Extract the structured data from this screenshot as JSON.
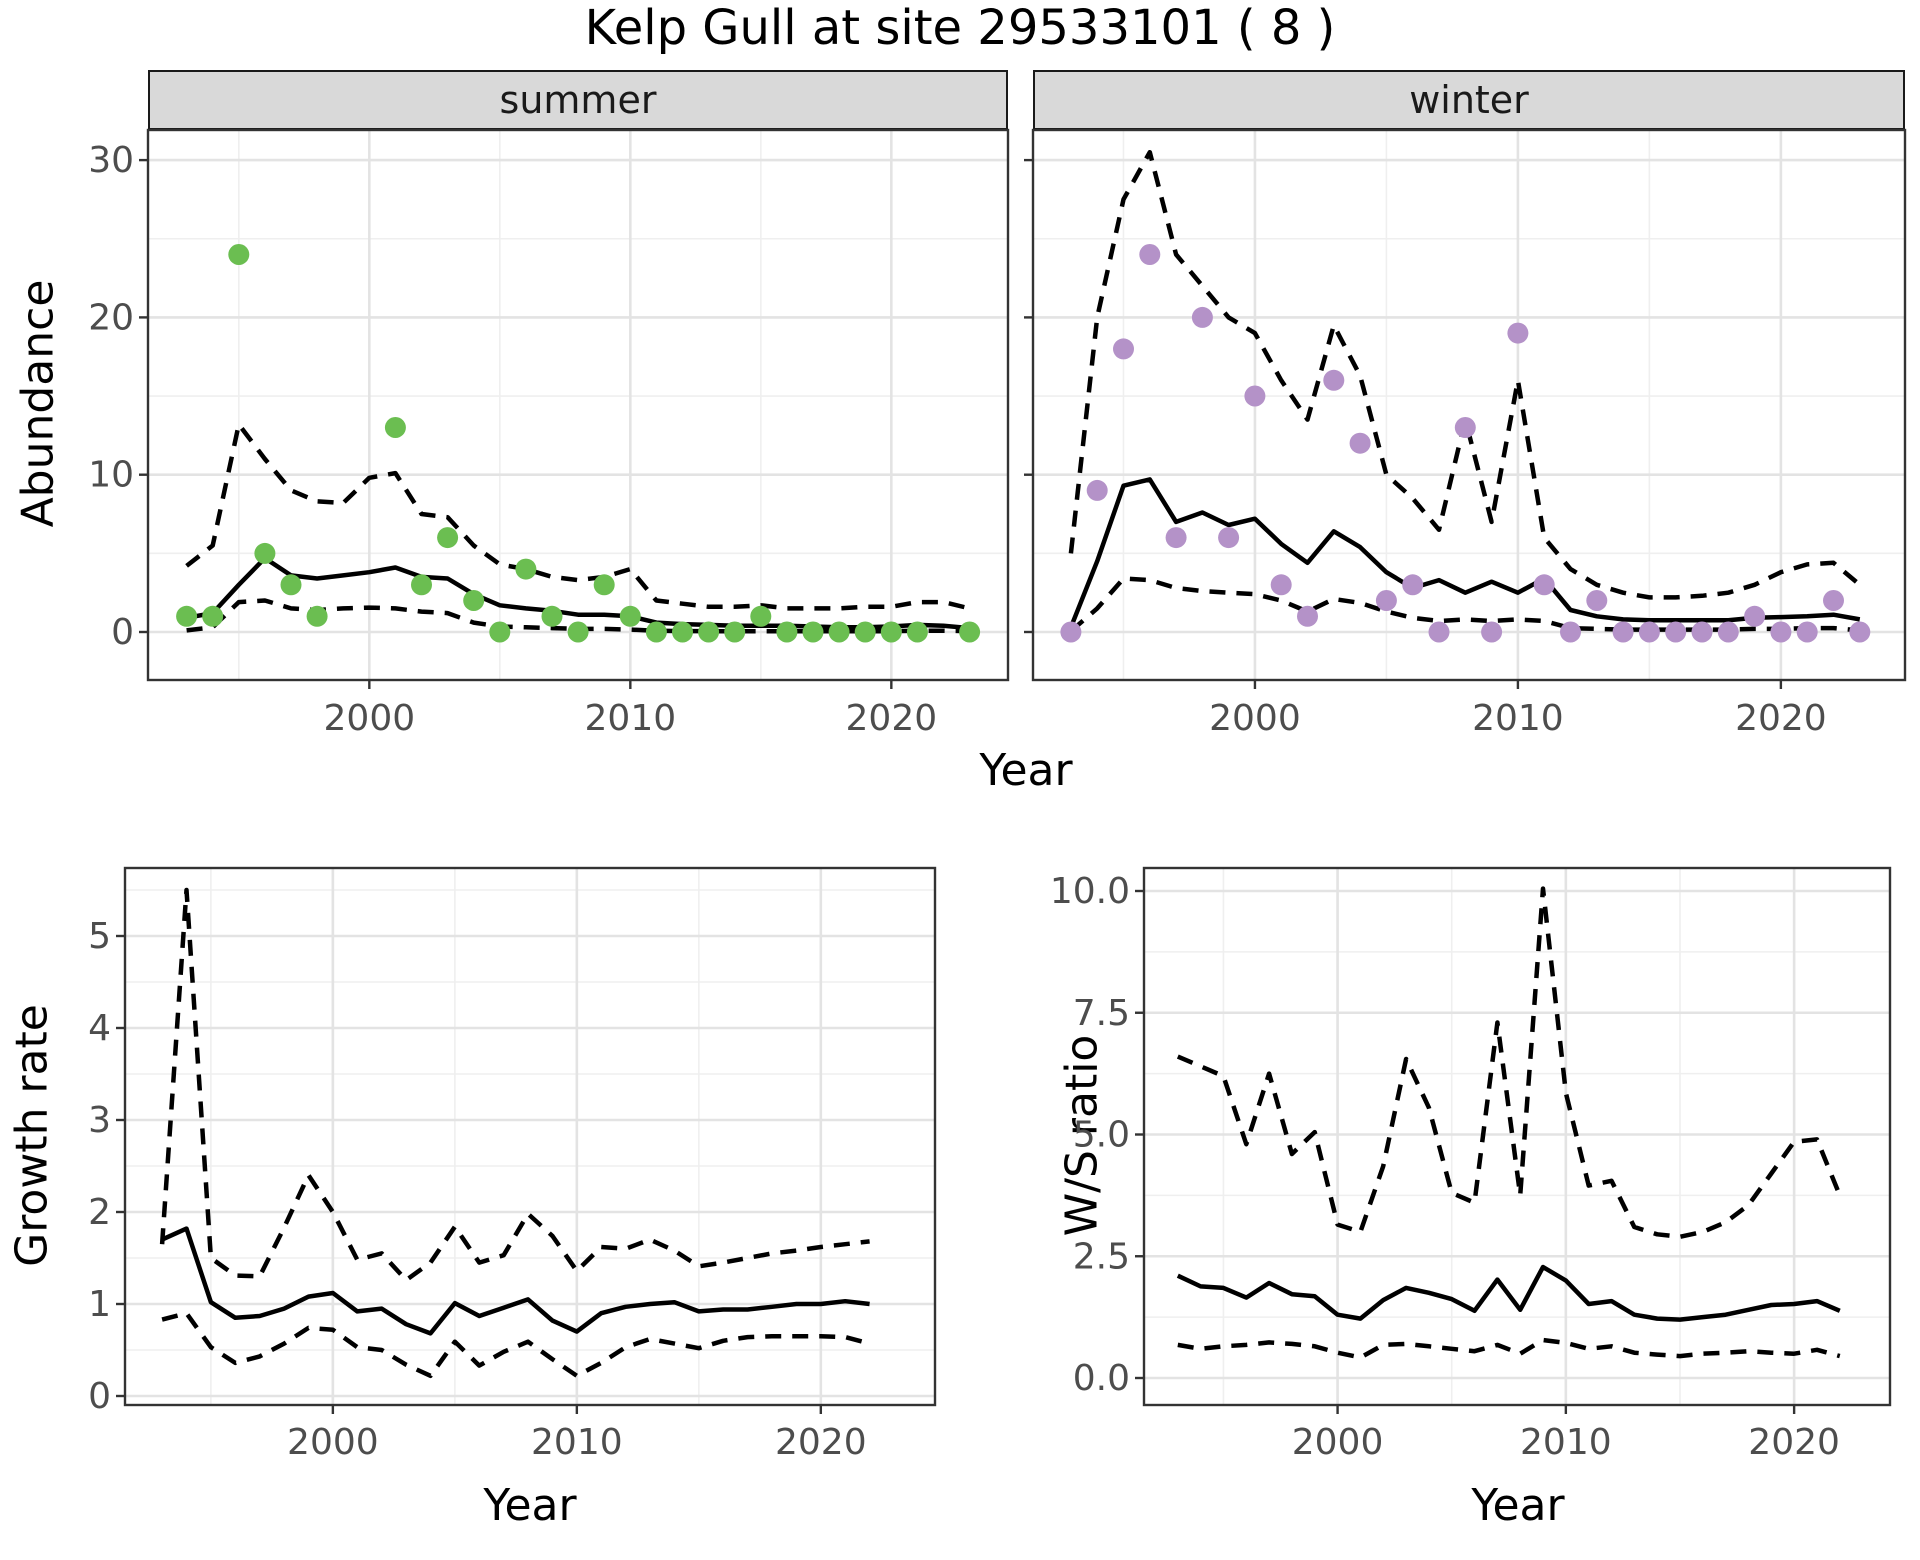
{
  "title": "Kelp Gull at site 29533101 ( 8 )",
  "axes": {
    "x_label": "Year",
    "abundance_label": "Abundance",
    "growth_label": "Growth rate",
    "ws_label": "W/S ratio"
  },
  "facets": [
    {
      "label": "summer"
    },
    {
      "label": "winter"
    }
  ],
  "colors": {
    "summer_point": "#6bbe51",
    "winter_point": "#b492c8",
    "line": "#000000",
    "strip_bg": "#d9d9d9",
    "panel_border": "#333333",
    "grid_major": "#e3e3e3",
    "grid_minor": "#efefef",
    "tick_text": "#4d4d4d"
  },
  "chart_data": [
    {
      "id": "abundance_summer",
      "type": "line",
      "facet": "summer",
      "xlabel": "Year",
      "ylabel": "Abundance",
      "years": [
        1993,
        1994,
        1995,
        1996,
        1997,
        1998,
        1999,
        2000,
        2001,
        2002,
        2003,
        2004,
        2005,
        2006,
        2007,
        2008,
        2009,
        2010,
        2011,
        2012,
        2013,
        2014,
        2015,
        2016,
        2017,
        2018,
        2019,
        2020,
        2021,
        2022,
        2023
      ],
      "series": [
        {
          "name": "model_fit",
          "style": "solid",
          "values": [
            0.9,
            1.2,
            3.0,
            4.7,
            3.6,
            3.4,
            3.6,
            3.8,
            4.1,
            3.5,
            3.4,
            2.4,
            1.7,
            1.5,
            1.35,
            1.1,
            1.1,
            1.0,
            0.6,
            0.5,
            0.45,
            0.4,
            0.4,
            0.4,
            0.35,
            0.3,
            0.3,
            0.35,
            0.45,
            0.4,
            0.25
          ]
        },
        {
          "name": "upper_ci",
          "style": "dashed",
          "values": [
            4.2,
            5.5,
            13.2,
            11.0,
            9.0,
            8.3,
            8.2,
            9.8,
            10.1,
            7.5,
            7.3,
            5.5,
            4.3,
            4.0,
            3.5,
            3.3,
            3.5,
            4.0,
            2.0,
            1.8,
            1.6,
            1.6,
            1.7,
            1.5,
            1.5,
            1.5,
            1.6,
            1.6,
            1.9,
            1.9,
            1.5
          ]
        },
        {
          "name": "lower_ci",
          "style": "dashed",
          "values": [
            0.1,
            0.3,
            1.9,
            2.0,
            1.5,
            1.4,
            1.5,
            1.55,
            1.5,
            1.3,
            1.2,
            0.6,
            0.35,
            0.3,
            0.25,
            0.2,
            0.2,
            0.15,
            0.08,
            0.06,
            0.05,
            0.05,
            0.05,
            0.05,
            0.05,
            0.05,
            0.05,
            0.05,
            0.08,
            0.08,
            0.05
          ]
        }
      ],
      "points": {
        "name": "observed_counts",
        "color": "#6bbe51",
        "values": [
          1,
          1,
          24,
          5,
          3,
          1,
          null,
          null,
          13,
          3,
          6,
          2,
          0,
          4,
          1,
          0,
          3,
          1,
          0,
          0,
          0,
          0,
          1,
          0,
          0,
          0,
          0,
          0,
          0,
          null,
          0
        ]
      },
      "ylim": [
        0,
        30.5
      ],
      "yticks": {
        "values": [
          0,
          10,
          20,
          30
        ],
        "labels": [
          "0",
          "10",
          "20",
          "30"
        ]
      },
      "yminor": [
        5,
        15,
        25
      ],
      "xticks": {
        "values": [
          2000,
          2010,
          2020
        ],
        "labels": [
          "2000",
          "2010",
          "2020"
        ]
      },
      "xminor": [
        1995,
        2005,
        2015
      ],
      "grid": true,
      "legend": "none"
    },
    {
      "id": "abundance_winter",
      "type": "line",
      "facet": "winter",
      "xlabel": "Year",
      "ylabel": "Abundance",
      "years": [
        1993,
        1994,
        1995,
        1996,
        1997,
        1998,
        1999,
        2000,
        2001,
        2002,
        2003,
        2004,
        2005,
        2006,
        2007,
        2008,
        2009,
        2010,
        2011,
        2012,
        2013,
        2014,
        2015,
        2016,
        2017,
        2018,
        2019,
        2020,
        2021,
        2022,
        2023
      ],
      "series": [
        {
          "name": "model_fit",
          "style": "solid",
          "values": [
            0.3,
            4.5,
            9.3,
            9.7,
            7.0,
            7.6,
            6.8,
            7.2,
            5.6,
            4.4,
            6.4,
            5.4,
            3.8,
            2.8,
            3.3,
            2.5,
            3.2,
            2.5,
            3.4,
            1.4,
            1.0,
            0.8,
            0.75,
            0.75,
            0.75,
            0.75,
            0.9,
            0.95,
            1.0,
            1.1,
            0.8
          ]
        },
        {
          "name": "upper_ci",
          "style": "dashed",
          "values": [
            5.0,
            20.0,
            27.5,
            30.5,
            24.0,
            22.0,
            20.0,
            19.0,
            16.0,
            13.5,
            19.5,
            16.3,
            10.0,
            8.5,
            6.5,
            13.5,
            7.0,
            16.0,
            6.0,
            4.0,
            3.0,
            2.5,
            2.2,
            2.2,
            2.3,
            2.5,
            3.0,
            3.8,
            4.3,
            4.4,
            3.0
          ]
        },
        {
          "name": "lower_ci",
          "style": "dashed",
          "values": [
            0.05,
            1.5,
            3.4,
            3.3,
            2.8,
            2.6,
            2.5,
            2.4,
            2.0,
            1.3,
            2.1,
            1.85,
            1.3,
            0.9,
            0.7,
            0.8,
            0.7,
            0.8,
            0.7,
            0.25,
            0.2,
            0.15,
            0.15,
            0.15,
            0.15,
            0.15,
            0.2,
            0.2,
            0.25,
            0.25,
            0.1
          ]
        }
      ],
      "points": {
        "name": "observed_counts",
        "color": "#b492c8",
        "values": [
          0,
          9,
          18,
          24,
          6,
          20,
          6,
          15,
          3,
          1,
          16,
          12,
          2,
          3,
          0,
          13,
          0,
          19,
          3,
          0,
          2,
          0,
          0,
          0,
          0,
          0,
          1,
          0,
          0,
          2,
          0
        ]
      },
      "ylim": [
        0,
        30.5
      ],
      "yticks": {
        "values": [
          0,
          10,
          20,
          30
        ],
        "labels": []
      },
      "yminor": [
        5,
        15,
        25
      ],
      "xticks": {
        "values": [
          2000,
          2010,
          2020
        ],
        "labels": [
          "2000",
          "2010",
          "2020"
        ]
      },
      "xminor": [
        1995,
        2005,
        2015
      ],
      "grid": true,
      "legend": "none"
    },
    {
      "id": "growth_rate",
      "type": "line",
      "facet": null,
      "xlabel": "Year",
      "ylabel": "Growth rate",
      "years": [
        1993,
        1994,
        1995,
        1996,
        1997,
        1998,
        1999,
        2000,
        2001,
        2002,
        2003,
        2004,
        2005,
        2006,
        2007,
        2008,
        2009,
        2010,
        2011,
        2012,
        2013,
        2014,
        2015,
        2016,
        2017,
        2018,
        2019,
        2020,
        2021,
        2022
      ],
      "series": [
        {
          "name": "model_fit",
          "style": "solid",
          "values": [
            1.7,
            1.82,
            1.02,
            0.85,
            0.87,
            0.95,
            1.08,
            1.12,
            0.92,
            0.95,
            0.78,
            0.68,
            1.01,
            0.87,
            0.96,
            1.05,
            0.82,
            0.7,
            0.9,
            0.97,
            1.0,
            1.02,
            0.92,
            0.94,
            0.94,
            0.97,
            1.0,
            1.0,
            1.03,
            1.0
          ]
        },
        {
          "name": "upper_ci",
          "style": "dashed",
          "values": [
            1.65,
            5.5,
            1.5,
            1.31,
            1.3,
            1.83,
            2.4,
            2.0,
            1.48,
            1.55,
            1.26,
            1.45,
            1.84,
            1.45,
            1.53,
            1.98,
            1.74,
            1.36,
            1.62,
            1.6,
            1.7,
            1.58,
            1.41,
            1.45,
            1.5,
            1.55,
            1.58,
            1.62,
            1.65,
            1.68
          ]
        },
        {
          "name": "lower_ci",
          "style": "dashed",
          "values": [
            0.83,
            0.9,
            0.53,
            0.36,
            0.43,
            0.57,
            0.74,
            0.72,
            0.53,
            0.5,
            0.34,
            0.22,
            0.59,
            0.33,
            0.48,
            0.59,
            0.4,
            0.22,
            0.36,
            0.53,
            0.62,
            0.57,
            0.52,
            0.6,
            0.64,
            0.65,
            0.65,
            0.65,
            0.64,
            0.57
          ]
        }
      ],
      "points": null,
      "ylim": [
        0,
        5.75
      ],
      "yticks": {
        "values": [
          0,
          1,
          2,
          3,
          4,
          5
        ],
        "labels": [
          "0",
          "1",
          "2",
          "3",
          "4",
          "5"
        ]
      },
      "yminor": [
        0.5,
        1.5,
        2.5,
        3.5,
        4.5,
        5.5
      ],
      "xticks": {
        "values": [
          2000,
          2010,
          2020
        ],
        "labels": [
          "2000",
          "2010",
          "2020"
        ]
      },
      "xminor": [
        1995,
        2005,
        2015
      ],
      "grid": true,
      "legend": "none"
    },
    {
      "id": "ws_ratio",
      "type": "line",
      "facet": null,
      "xlabel": "Year",
      "ylabel": "W/S ratio",
      "years": [
        1993,
        1994,
        1995,
        1996,
        1997,
        1998,
        1999,
        2000,
        2001,
        2002,
        2003,
        2004,
        2005,
        2006,
        2007,
        2008,
        2009,
        2010,
        2011,
        2012,
        2013,
        2014,
        2015,
        2016,
        2017,
        2018,
        2019,
        2020,
        2021,
        2022
      ],
      "series": [
        {
          "name": "model_fit",
          "style": "solid",
          "values": [
            2.1,
            1.88,
            1.85,
            1.65,
            1.95,
            1.72,
            1.68,
            1.3,
            1.22,
            1.6,
            1.85,
            1.75,
            1.62,
            1.38,
            2.02,
            1.4,
            2.28,
            2.0,
            1.52,
            1.58,
            1.3,
            1.22,
            1.2,
            1.25,
            1.3,
            1.4,
            1.5,
            1.52,
            1.58,
            1.38
          ]
        },
        {
          "name": "upper_ci",
          "style": "dashed",
          "values": [
            6.6,
            6.4,
            6.2,
            4.8,
            6.25,
            4.6,
            5.05,
            3.15,
            3.0,
            4.35,
            6.55,
            5.55,
            3.8,
            3.6,
            7.3,
            3.75,
            10.05,
            5.85,
            3.95,
            4.05,
            3.1,
            2.95,
            2.9,
            3.0,
            3.2,
            3.55,
            4.2,
            4.85,
            4.9,
            3.75
          ]
        },
        {
          "name": "lower_ci",
          "style": "dashed",
          "values": [
            0.68,
            0.6,
            0.65,
            0.68,
            0.73,
            0.7,
            0.65,
            0.52,
            0.42,
            0.68,
            0.7,
            0.65,
            0.6,
            0.55,
            0.68,
            0.5,
            0.78,
            0.72,
            0.6,
            0.65,
            0.52,
            0.48,
            0.45,
            0.5,
            0.52,
            0.55,
            0.52,
            0.5,
            0.58,
            0.45
          ]
        }
      ],
      "points": null,
      "ylim": [
        0,
        10.5
      ],
      "yticks": {
        "values": [
          0,
          2.5,
          5,
          7.5,
          10
        ],
        "labels": [
          "0.0",
          "2.5",
          "5.0",
          "7.5",
          "10.0"
        ]
      },
      "yminor": [
        1.25,
        3.75,
        6.25,
        8.75
      ],
      "xticks": {
        "values": [
          2000,
          2010,
          2020
        ],
        "labels": [
          "2000",
          "2010",
          "2020"
        ]
      },
      "xminor": [
        1995,
        2005,
        2015
      ],
      "grid": true,
      "legend": "none"
    }
  ]
}
